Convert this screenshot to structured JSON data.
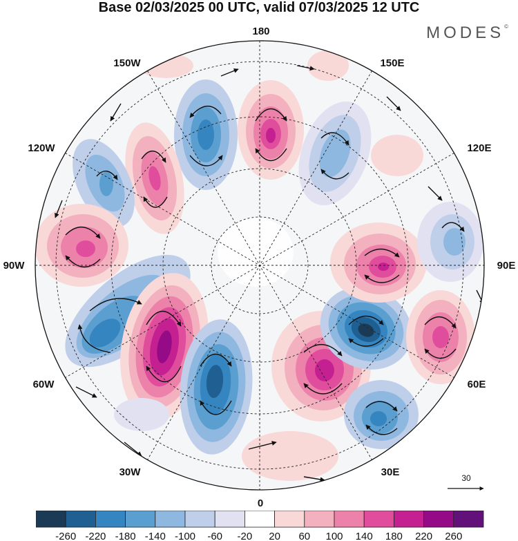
{
  "title": "Base 02/03/2025 00 UTC, valid 07/03/2025 12 UTC",
  "brand": {
    "name": "MODES",
    "mark": "©"
  },
  "grid_labels": [
    {
      "id": "lon-180",
      "text": "180"
    },
    {
      "id": "lon-150e",
      "text": "150E"
    },
    {
      "id": "lon-120e",
      "text": "120E"
    },
    {
      "id": "lon-90e",
      "text": "90E"
    },
    {
      "id": "lon-60e",
      "text": "60E"
    },
    {
      "id": "lon-30e",
      "text": "30E"
    },
    {
      "id": "lon-0",
      "text": "0"
    },
    {
      "id": "lon-30w",
      "text": "30W"
    },
    {
      "id": "lon-60w",
      "text": "60W"
    },
    {
      "id": "lon-90w",
      "text": "90W"
    },
    {
      "id": "lon-120w",
      "text": "120W"
    },
    {
      "id": "lon-150w",
      "text": "150W"
    }
  ],
  "reference_vector": {
    "label": "30"
  },
  "colorbar": {
    "colors": [
      "#1b3a56",
      "#1f5f92",
      "#3585c0",
      "#5b9fd0",
      "#8fb8e0",
      "#bfcfea",
      "#e2e1f1",
      "#ffffff",
      "#f9d8d8",
      "#f3b0bf",
      "#ec82aa",
      "#e04d9d",
      "#c52091",
      "#950a86",
      "#62117b"
    ],
    "ticks": [
      "-260",
      "-220",
      "-180",
      "-140",
      "-100",
      "-60",
      "-20",
      "20",
      "60",
      "100",
      "140",
      "180",
      "220",
      "260"
    ]
  },
  "map_data": {
    "projection": "north-polar-stereographic",
    "center": "North Pole",
    "anomalies": [
      {
        "name": "neg-pacific-150w",
        "value": -160
      },
      {
        "name": "pos-central-pacific",
        "value": 190
      },
      {
        "name": "neg-kamchatka",
        "value": -100
      },
      {
        "name": "pos-alaska-bering",
        "value": 150
      },
      {
        "name": "neg-nw-canada",
        "value": -120
      },
      {
        "name": "pos-hudson-west",
        "value": 160
      },
      {
        "name": "neg-labrador",
        "value": -160
      },
      {
        "name": "pos-greenland-atlantic",
        "value": 250
      },
      {
        "name": "neg-north-atlantic",
        "value": -230
      },
      {
        "name": "pos-scandinavia",
        "value": 200
      },
      {
        "name": "neg-west-siberia",
        "value": -270
      },
      {
        "name": "pos-central-siberia",
        "value": 180
      },
      {
        "name": "pos-central-asia",
        "value": 150
      },
      {
        "name": "neg-mediterranean-east",
        "value": -180
      },
      {
        "name": "neg-east-siberia-90e",
        "value": -100
      }
    ]
  }
}
